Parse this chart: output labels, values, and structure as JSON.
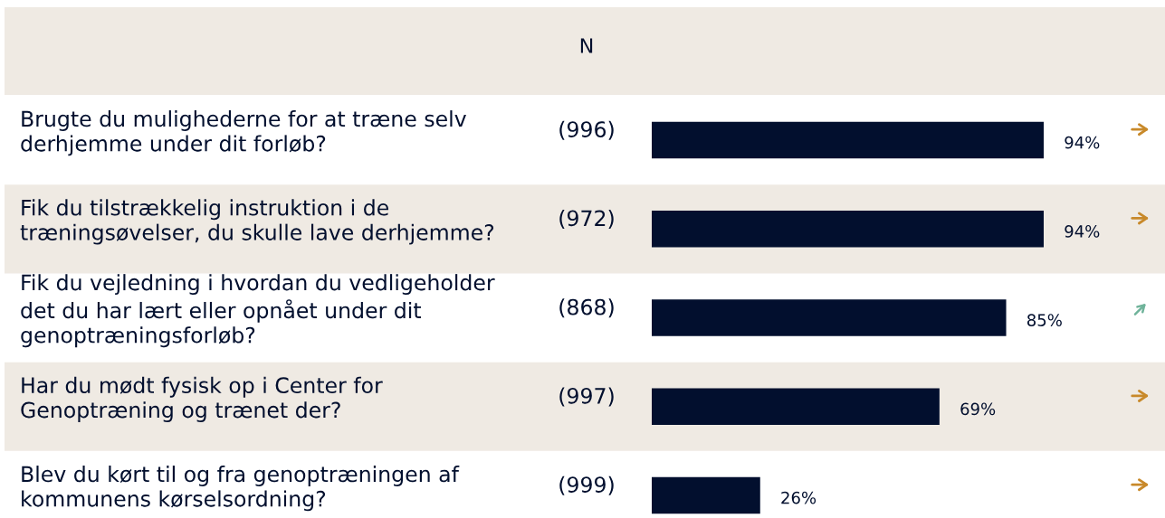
{
  "chart_data": {
    "type": "bar",
    "orientation": "horizontal",
    "categories": [
      "Brugte du mulighederne for at træne selv\nderhjemme under dit forløb?",
      "Fik du tilstrækkelig instruktion i de\ntræningsøvelser, du skulle lave derhjemme?",
      "Fik du vejledning i hvordan du vedligeholder\ndet du har lært eller opnået under dit\ngenoptræningsforløb?",
      "Har du mødt fysisk op i Center for\nGenoptræning og trænet der?",
      "Blev du kørt til og fra genoptræningen af\nkommunens kørselsordning?"
    ],
    "values": [
      94,
      94,
      85,
      69,
      26
    ],
    "value_labels": [
      "94%",
      "94%",
      "85%",
      "69%",
      "26%"
    ],
    "color": "#020f2e",
    "annotations": [
      "N",
      "(996)",
      "(972)",
      "(868)",
      "(997)",
      "(999)"
    ]
  }
}
